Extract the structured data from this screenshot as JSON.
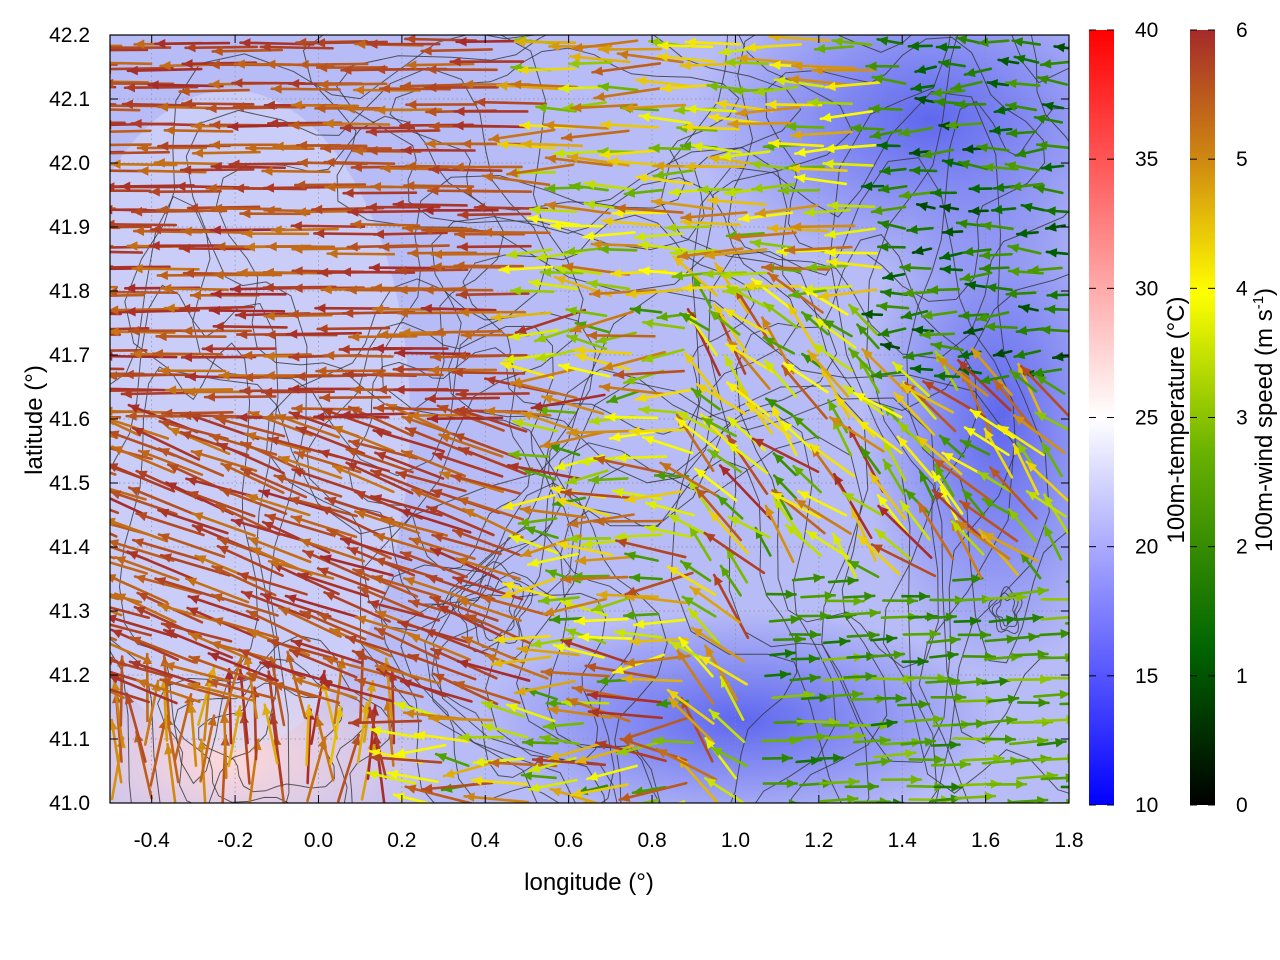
{
  "chart_data": {
    "type": "heatmap",
    "title": "",
    "xlabel": "longitude (°)",
    "ylabel": "latitude (°)",
    "xlim": [
      -0.5,
      1.8
    ],
    "ylim": [
      41.0,
      42.2
    ],
    "xticks": [
      "-0.4",
      "-0.2",
      "0.0",
      "0.2",
      "0.4",
      "0.6",
      "0.8",
      "1.0",
      "1.2",
      "1.4",
      "1.6",
      "1.8"
    ],
    "yticks": [
      "41.0",
      "41.1",
      "41.2",
      "41.3",
      "41.4",
      "41.5",
      "41.6",
      "41.7",
      "41.8",
      "41.9",
      "42.0",
      "42.1",
      "42.2"
    ],
    "grid": true,
    "layers": [
      {
        "name": "temperature",
        "description_unit": "°C",
        "range": [
          10,
          40
        ],
        "colormap": [
          "#0000ff",
          "#ffffff",
          "#ff0000"
        ],
        "pattern": "mostly 15-22 °C over the domain, warmest (~27-29 °C) in the lower-left corner near longitude -0.4 to 0.1, latitude 41.0-41.15; coolest (~15-16 °C) in the north-east and east"
      },
      {
        "name": "wind_vectors",
        "range": [
          0,
          6
        ],
        "colormap": [
          "#000000",
          "#006400",
          "#66b000",
          "#ffff00",
          "#d08a10",
          "#a52a2a"
        ],
        "pattern": "strong (5-6 m/s) westward-blowing flow over the western half, weaker (1-3 m/s) eastward flow in the south-east, near-calm in the north-east"
      },
      {
        "name": "terrain_contours",
        "color": "#333333"
      }
    ],
    "colorbars": [
      {
        "label": "100m-temperature (°C)",
        "ticks": [
          "10",
          "15",
          "20",
          "25",
          "30",
          "35",
          "40"
        ],
        "colors": [
          "#0000ff",
          "#ffffff",
          "#ff0000"
        ]
      },
      {
        "label_main": "100m-wind speed (m s",
        "label_sup": "-1",
        "label_end": ")",
        "ticks": [
          "0",
          "1",
          "2",
          "3",
          "4",
          "5",
          "6"
        ],
        "colors": [
          "#000000",
          "#006400",
          "#66b000",
          "#ffff00",
          "#d08a10",
          "#a52a2a"
        ]
      }
    ]
  }
}
